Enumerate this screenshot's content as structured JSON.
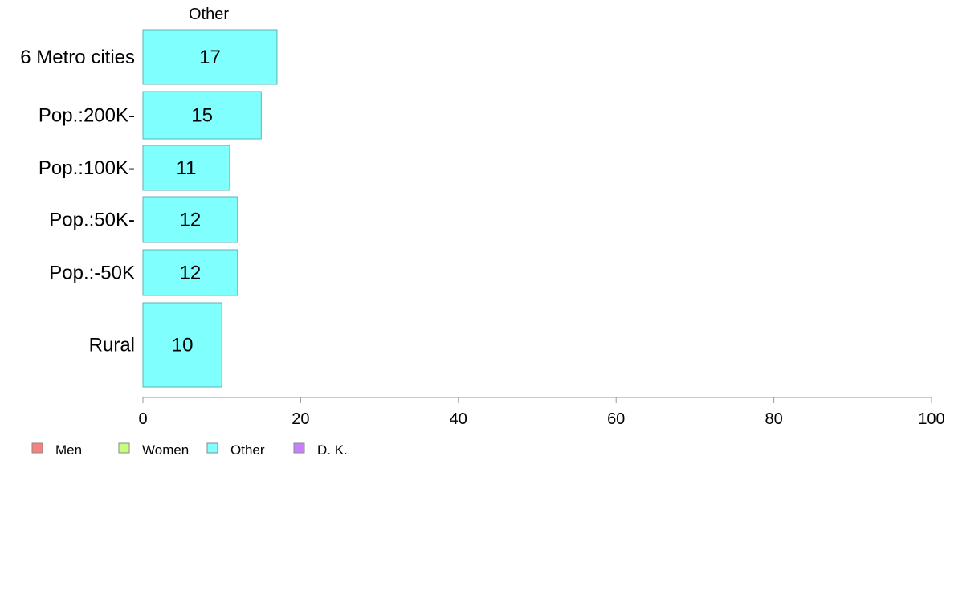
{
  "chart_data": {
    "type": "bar",
    "orientation": "horizontal",
    "title": "Other",
    "categories": [
      "6 Metro cities",
      "Pop.:200K-",
      "Pop.:100K-",
      "Pop.:50K-",
      "Pop.:-50K",
      "Rural"
    ],
    "values": [
      17,
      15,
      11,
      12,
      12,
      10
    ],
    "value_labels": [
      "17",
      "15",
      "11",
      "12",
      "12",
      "10"
    ],
    "xlim": [
      0,
      100
    ],
    "x_ticks": [
      0,
      20,
      40,
      60,
      80,
      100
    ],
    "x_tick_labels": [
      "0",
      "20",
      "40",
      "60",
      "80",
      "100"
    ],
    "xlabel": "",
    "ylabel": "",
    "grid": false,
    "bar_color": "#80ffff",
    "bar_border_color": "#5ab3b3",
    "legend_position": "bottom-left",
    "legend": [
      {
        "label": "Men",
        "color": "#f8807f"
      },
      {
        "label": "Women",
        "color": "#c6ff80"
      },
      {
        "label": "Other",
        "color": "#80ffff"
      },
      {
        "label": "D. K.",
        "color": "#c680ff"
      }
    ]
  }
}
